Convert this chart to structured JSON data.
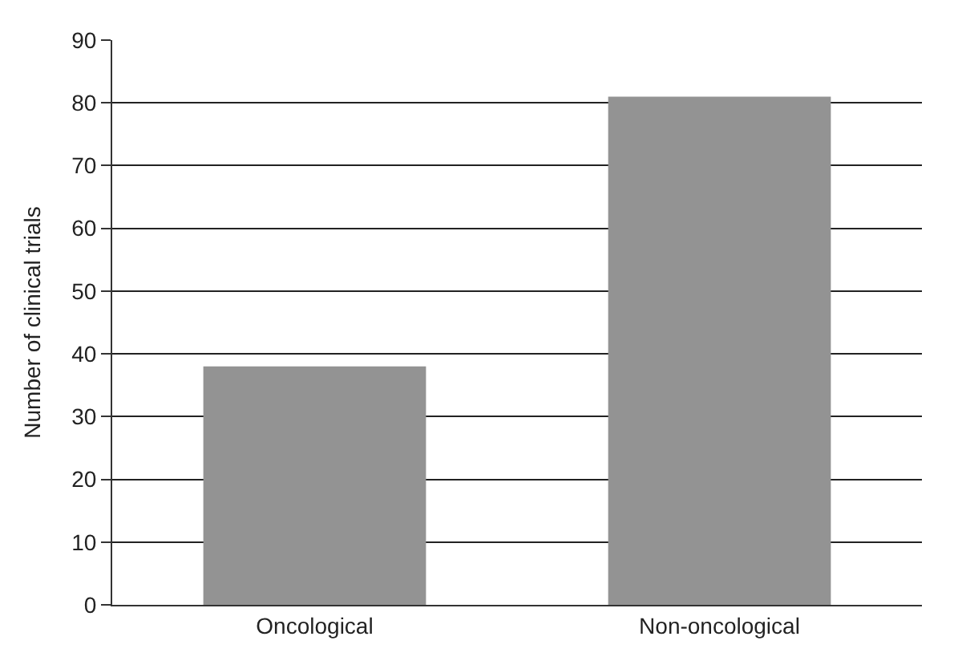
{
  "chart_data": {
    "type": "bar",
    "ylabel": "Number of clinical trials",
    "categories": [
      "Oncological",
      "Non-oncological"
    ],
    "values": [
      38,
      81
    ],
    "color": "#939393",
    "ylim": [
      0,
      90
    ],
    "yticks": [
      0,
      10,
      20,
      30,
      40,
      50,
      60,
      70,
      80,
      90
    ],
    "grid": "y"
  }
}
